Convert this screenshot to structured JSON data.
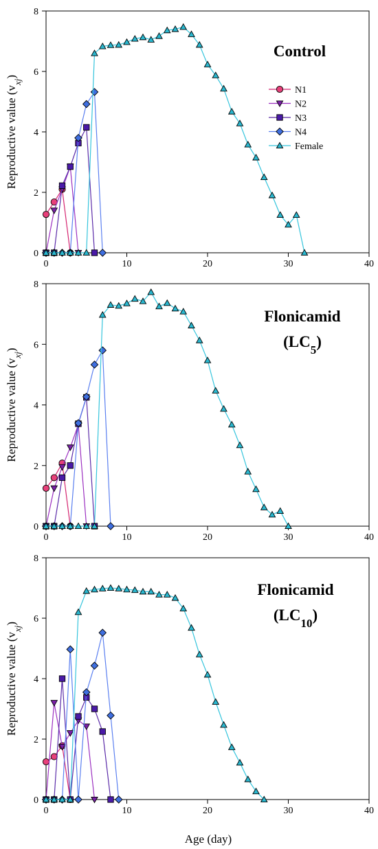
{
  "figure": {
    "x_axis_label": "Age (day)",
    "y_axis_label": "Reproductive value (v",
    "y_axis_label_sub": "xj",
    "y_axis_label_end": ")"
  },
  "legend": [
    "N1",
    "N2",
    "N3",
    "N4",
    "Female"
  ],
  "series_styles": {
    "N1": {
      "marker": "circle",
      "fill": "#e8407a",
      "line": "#d4226e"
    },
    "N2": {
      "marker": "triangle-down",
      "fill": "#7a1fa8",
      "line": "#9b2fc0"
    },
    "N3": {
      "marker": "square",
      "fill": "#4a1aa8",
      "line": "#5a2aa8"
    },
    "N4": {
      "marker": "diamond",
      "fill": "#3f6fe0",
      "line": "#5a7ff0"
    },
    "Female": {
      "marker": "triangle-up",
      "fill": "#2ab8d0",
      "line": "#33c4dc"
    }
  },
  "chart_data": [
    {
      "type": "line",
      "title_main": "Control",
      "title_sub": "",
      "title_sub_suffix": "",
      "xlim": [
        0,
        40
      ],
      "ylim": [
        0,
        8
      ],
      "xticks": [
        0,
        10,
        20,
        30,
        40
      ],
      "yticks": [
        0,
        2,
        4,
        6,
        8
      ],
      "show_legend": true,
      "series": [
        {
          "name": "N1",
          "points": [
            [
              0,
              1.27
            ],
            [
              1,
              1.68
            ],
            [
              2,
              2.1
            ],
            [
              3,
              0
            ]
          ]
        },
        {
          "name": "N2",
          "points": [
            [
              0,
              0
            ],
            [
              1,
              1.4
            ],
            [
              2,
              2.1
            ],
            [
              3,
              2.85
            ],
            [
              4,
              0
            ]
          ]
        },
        {
          "name": "N3",
          "points": [
            [
              0,
              0
            ],
            [
              1,
              0
            ],
            [
              2,
              2.22
            ],
            [
              3,
              2.85
            ],
            [
              4,
              3.63
            ],
            [
              5,
              4.15
            ],
            [
              6,
              0
            ]
          ]
        },
        {
          "name": "N4",
          "points": [
            [
              0,
              0
            ],
            [
              1,
              0
            ],
            [
              2,
              0
            ],
            [
              3,
              0
            ],
            [
              4,
              3.8
            ],
            [
              5,
              4.92
            ],
            [
              6,
              5.32
            ],
            [
              7,
              0
            ]
          ]
        },
        {
          "name": "Female",
          "points": [
            [
              0,
              0
            ],
            [
              1,
              0
            ],
            [
              2,
              0
            ],
            [
              3,
              0
            ],
            [
              4,
              0
            ],
            [
              5,
              0
            ],
            [
              6,
              6.6
            ],
            [
              7,
              6.83
            ],
            [
              8,
              6.87
            ],
            [
              9,
              6.88
            ],
            [
              10,
              6.97
            ],
            [
              11,
              7.08
            ],
            [
              12,
              7.13
            ],
            [
              13,
              7.05
            ],
            [
              14,
              7.17
            ],
            [
              15,
              7.36
            ],
            [
              16,
              7.4
            ],
            [
              17,
              7.47
            ],
            [
              18,
              7.23
            ],
            [
              19,
              6.88
            ],
            [
              20,
              6.23
            ],
            [
              21,
              5.87
            ],
            [
              22,
              5.43
            ],
            [
              23,
              4.67
            ],
            [
              24,
              4.28
            ],
            [
              25,
              3.58
            ],
            [
              26,
              3.15
            ],
            [
              27,
              2.5
            ],
            [
              28,
              1.9
            ],
            [
              29,
              1.25
            ],
            [
              30,
              0.93
            ],
            [
              31,
              1.25
            ],
            [
              32,
              0
            ]
          ]
        }
      ]
    },
    {
      "type": "line",
      "title_main": "Flonicamid",
      "title_sub": "(LC",
      "title_sub_suffix": "5",
      "title_sub_end": ")",
      "xlim": [
        0,
        40
      ],
      "ylim": [
        0,
        8
      ],
      "xticks": [
        0,
        10,
        20,
        30,
        40
      ],
      "yticks": [
        0,
        2,
        4,
        6,
        8
      ],
      "show_legend": false,
      "series": [
        {
          "name": "N1",
          "points": [
            [
              0,
              1.25
            ],
            [
              1,
              1.6
            ],
            [
              2,
              2.08
            ],
            [
              3,
              0
            ]
          ]
        },
        {
          "name": "N2",
          "points": [
            [
              0,
              0
            ],
            [
              1,
              1.25
            ],
            [
              2,
              1.95
            ],
            [
              3,
              2.6
            ],
            [
              4,
              3.35
            ],
            [
              5,
              0
            ]
          ]
        },
        {
          "name": "N3",
          "points": [
            [
              0,
              0
            ],
            [
              1,
              0
            ],
            [
              2,
              1.6
            ],
            [
              3,
              2.0
            ],
            [
              4,
              3.38
            ],
            [
              5,
              4.25
            ],
            [
              6,
              0
            ]
          ]
        },
        {
          "name": "N4",
          "points": [
            [
              0,
              0
            ],
            [
              1,
              0
            ],
            [
              2,
              0
            ],
            [
              3,
              0
            ],
            [
              4,
              3.4
            ],
            [
              5,
              4.27
            ],
            [
              6,
              5.33
            ],
            [
              7,
              5.8
            ],
            [
              8,
              0
            ]
          ]
        },
        {
          "name": "Female",
          "points": [
            [
              0,
              0
            ],
            [
              1,
              0
            ],
            [
              2,
              0
            ],
            [
              3,
              0
            ],
            [
              4,
              0
            ],
            [
              5,
              0
            ],
            [
              6,
              0
            ],
            [
              7,
              6.97
            ],
            [
              8,
              7.3
            ],
            [
              9,
              7.27
            ],
            [
              10,
              7.35
            ],
            [
              11,
              7.5
            ],
            [
              12,
              7.42
            ],
            [
              13,
              7.72
            ],
            [
              14,
              7.25
            ],
            [
              15,
              7.36
            ],
            [
              16,
              7.18
            ],
            [
              17,
              7.08
            ],
            [
              18,
              6.62
            ],
            [
              19,
              6.13
            ],
            [
              20,
              5.47
            ],
            [
              21,
              4.47
            ],
            [
              22,
              3.87
            ],
            [
              23,
              3.35
            ],
            [
              24,
              2.67
            ],
            [
              25,
              1.8
            ],
            [
              26,
              1.22
            ],
            [
              27,
              0.62
            ],
            [
              28,
              0.38
            ],
            [
              29,
              0.5
            ],
            [
              30,
              0
            ]
          ]
        }
      ]
    },
    {
      "type": "line",
      "title_main": "Flonicamid",
      "title_sub": "(LC",
      "title_sub_suffix": "10",
      "title_sub_end": ")",
      "xlim": [
        0,
        40
      ],
      "ylim": [
        0,
        8
      ],
      "xticks": [
        0,
        10,
        20,
        30,
        40
      ],
      "yticks": [
        0,
        2,
        4,
        6,
        8
      ],
      "show_legend": false,
      "series": [
        {
          "name": "N1",
          "points": [
            [
              0,
              1.25
            ],
            [
              1,
              1.42
            ],
            [
              2,
              1.78
            ],
            [
              3,
              0
            ]
          ]
        },
        {
          "name": "N2",
          "points": [
            [
              0,
              0
            ],
            [
              1,
              3.2
            ],
            [
              2,
              1.75
            ],
            [
              3,
              2.2
            ],
            [
              4,
              2.62
            ],
            [
              5,
              2.42
            ],
            [
              6,
              0
            ]
          ]
        },
        {
          "name": "N3",
          "points": [
            [
              0,
              0
            ],
            [
              1,
              0
            ],
            [
              2,
              4.0
            ],
            [
              3,
              0
            ],
            [
              4,
              2.75
            ],
            [
              5,
              3.38
            ],
            [
              6,
              3.0
            ],
            [
              7,
              2.25
            ],
            [
              8,
              0
            ]
          ]
        },
        {
          "name": "N4",
          "points": [
            [
              0,
              0
            ],
            [
              1,
              0
            ],
            [
              2,
              0
            ],
            [
              3,
              4.97
            ],
            [
              4,
              0
            ],
            [
              5,
              3.55
            ],
            [
              6,
              4.43
            ],
            [
              7,
              5.52
            ],
            [
              8,
              2.78
            ],
            [
              9,
              0
            ]
          ]
        },
        {
          "name": "Female",
          "points": [
            [
              0,
              0
            ],
            [
              1,
              0
            ],
            [
              2,
              0
            ],
            [
              3,
              0
            ],
            [
              4,
              6.2
            ],
            [
              5,
              6.9
            ],
            [
              6,
              6.95
            ],
            [
              7,
              6.98
            ],
            [
              8,
              7.0
            ],
            [
              9,
              6.98
            ],
            [
              10,
              6.95
            ],
            [
              11,
              6.93
            ],
            [
              12,
              6.88
            ],
            [
              13,
              6.88
            ],
            [
              14,
              6.78
            ],
            [
              15,
              6.78
            ],
            [
              16,
              6.67
            ],
            [
              17,
              6.32
            ],
            [
              18,
              5.68
            ],
            [
              19,
              4.8
            ],
            [
              20,
              4.13
            ],
            [
              21,
              3.23
            ],
            [
              22,
              2.47
            ],
            [
              23,
              1.73
            ],
            [
              24,
              1.22
            ],
            [
              25,
              0.67
            ],
            [
              26,
              0.27
            ],
            [
              27,
              0
            ]
          ]
        }
      ]
    }
  ]
}
